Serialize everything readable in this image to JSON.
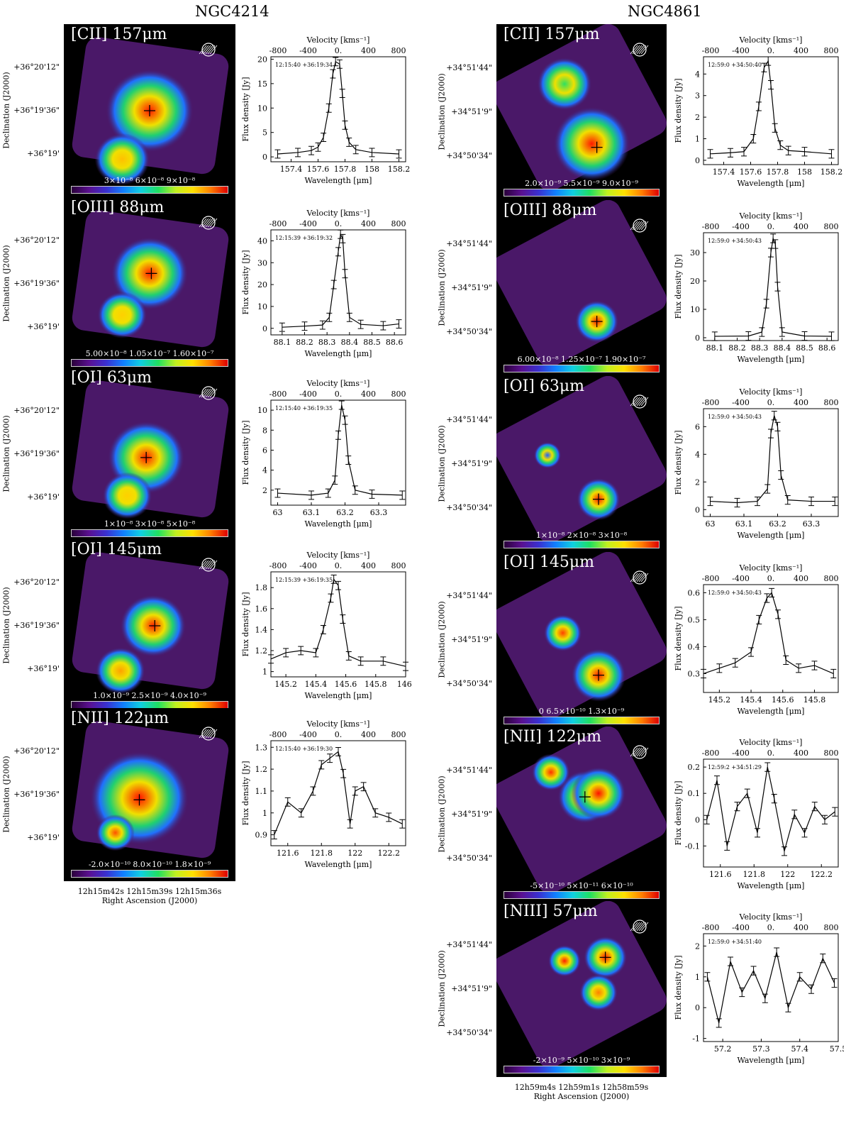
{
  "galaxies": [
    {
      "name": "NGC4214",
      "dec_axis_label": "Declination (J2000)",
      "dec_ticks": [
        "+36°20'12\"",
        "+36°19'36\"",
        "+36°19'"
      ],
      "ra_label": "Right Ascension (J2000)",
      "ra_ticks": [
        "12h15m42s",
        "12h15m39s",
        "12h15m36s"
      ],
      "panels": [
        {
          "line": "[CII] 157μm",
          "cbar_ticks": [
            "3×10⁻⁸",
            "6×10⁻⁸",
            "9×10⁻⁸"
          ]
        },
        {
          "line": "[OIII] 88μm",
          "cbar_ticks": [
            "5.00×10⁻⁸",
            "1.05×10⁻⁷",
            "1.60×10⁻⁷"
          ]
        },
        {
          "line": "[OI] 63μm",
          "cbar_ticks": [
            "1×10⁻⁸",
            "3×10⁻⁸",
            "5×10⁻⁸"
          ]
        },
        {
          "line": "[OI] 145μm",
          "cbar_ticks": [
            "1.0×10⁻⁹",
            "2.5×10⁻⁹",
            "4.0×10⁻⁹"
          ]
        },
        {
          "line": "[NII] 122μm",
          "cbar_ticks": [
            "-2.0×10⁻¹⁰",
            "8.0×10⁻¹⁰",
            "1.8×10⁻⁹"
          ]
        }
      ]
    },
    {
      "name": "NGC4861",
      "dec_axis_label": "Declination (J2000)",
      "dec_ticks": [
        "+34°51'44\"",
        "+34°51'9\"",
        "+34°50'34\""
      ],
      "ra_label": "Right Ascension (J2000)",
      "ra_ticks": [
        "12h59m4s",
        "12h59m1s",
        "12h58m59s"
      ],
      "panels": [
        {
          "line": "[CII] 157μm",
          "cbar_ticks": [
            "2.0×10⁻⁹",
            "5.5×10⁻⁹",
            "9.0×10⁻⁹"
          ]
        },
        {
          "line": "[OIII] 88μm",
          "cbar_ticks": [
            "6.00×10⁻⁸",
            "1.25×10⁻⁷",
            "1.90×10⁻⁷"
          ]
        },
        {
          "line": "[OI] 63μm",
          "cbar_ticks": [
            "1×10⁻⁸",
            "2×10⁻⁸",
            "3×10⁻⁸"
          ]
        },
        {
          "line": "[OI] 145μm",
          "cbar_ticks": [
            "0",
            "6.5×10⁻¹⁰",
            "1.3×10⁻⁹"
          ]
        },
        {
          "line": "[NII] 122μm",
          "cbar_ticks": [
            "-5×10⁻¹⁰",
            "5×10⁻¹¹",
            "6×10⁻¹⁰"
          ]
        },
        {
          "line": "[NIII] 57μm",
          "cbar_ticks": [
            "-2×10⁻⁹",
            "5×10⁻¹⁰",
            "3×10⁻⁹"
          ]
        }
      ]
    }
  ],
  "chart_data": [
    {
      "type": "line",
      "galaxy": "NGC4214",
      "panel": "[CII] 157μm",
      "position": "12:15:40 +36:19:34",
      "xlabel": "Wavelength [μm]",
      "ylabel": "Flux density [Jy]",
      "top_xlabel": "Velocity [kms⁻¹]",
      "xlim": [
        157.25,
        158.25
      ],
      "ylim": [
        -1,
        20.5
      ],
      "xticks": [
        157.4,
        157.6,
        157.8,
        158.0,
        158.2
      ],
      "yticks": [
        0,
        5,
        10,
        15,
        20
      ],
      "top_ticks": [
        "-800",
        "-400",
        "0.",
        "400",
        "800"
      ],
      "x": [
        157.3,
        157.45,
        157.55,
        157.6,
        157.64,
        157.68,
        157.71,
        157.73,
        157.76,
        157.78,
        157.8,
        157.83,
        157.88,
        158.0,
        158.2
      ],
      "y": [
        0.6,
        0.9,
        1.3,
        2.0,
        4.0,
        10.0,
        17.0,
        19.5,
        19.0,
        13.0,
        6.5,
        3.0,
        1.5,
        0.9,
        0.6
      ]
    },
    {
      "type": "line",
      "galaxy": "NGC4214",
      "panel": "[OIII] 88μm",
      "position": "12:15:39 +36:19:32",
      "xlabel": "Wavelength [μm]",
      "ylabel": "Flux density [Jy]",
      "top_xlabel": "Velocity [kms⁻¹]",
      "xlim": [
        88.05,
        88.65
      ],
      "ylim": [
        -3,
        45
      ],
      "xticks": [
        88.1,
        88.2,
        88.3,
        88.4,
        88.5,
        88.6
      ],
      "yticks": [
        0,
        10,
        20,
        30,
        40
      ],
      "top_ticks": [
        "-800",
        "-400",
        "0.",
        "400",
        "800"
      ],
      "x": [
        88.1,
        88.2,
        88.28,
        88.31,
        88.33,
        88.35,
        88.36,
        88.37,
        88.38,
        88.4,
        88.45,
        88.55,
        88.62
      ],
      "y": [
        0.5,
        1.0,
        1.5,
        5.0,
        20.0,
        35.0,
        43.0,
        41.0,
        25.0,
        5.0,
        1.8,
        1.2,
        2.0
      ]
    },
    {
      "type": "line",
      "galaxy": "NGC4214",
      "panel": "[OI] 63μm",
      "position": "12:15:40 +36:19:35",
      "xlabel": "Wavelength [μm]",
      "ylabel": "Flux density [Jy]",
      "top_xlabel": "Velocity [kms⁻¹]",
      "xlim": [
        62.98,
        63.38
      ],
      "ylim": [
        0.5,
        11
      ],
      "xticks": [
        63.0,
        63.1,
        63.2,
        63.3
      ],
      "yticks": [
        2,
        4,
        6,
        8,
        10
      ],
      "top_ticks": [
        "-800",
        "-400",
        "0.",
        "400",
        "800"
      ],
      "x": [
        63.0,
        63.1,
        63.15,
        63.17,
        63.18,
        63.19,
        63.2,
        63.21,
        63.23,
        63.28,
        63.37
      ],
      "y": [
        1.7,
        1.5,
        1.7,
        3.0,
        7.5,
        10.5,
        9.0,
        5.0,
        2.0,
        1.6,
        1.5
      ]
    },
    {
      "type": "line",
      "galaxy": "NGC4214",
      "panel": "[OI] 145μm",
      "position": "12:15:39 +36:19:35",
      "xlabel": "Wavelength [μm]",
      "ylabel": "Flux density [Jy]",
      "top_xlabel": "Velocity [kms⁻¹]",
      "xlim": [
        145.1,
        146.0
      ],
      "ylim": [
        0.95,
        1.95
      ],
      "xticks": [
        145.2,
        145.4,
        145.6,
        145.8,
        146.0
      ],
      "xtick_labels": [
        "145.2",
        "145.4",
        "145.6",
        "145.8",
        "146."
      ],
      "yticks": [
        1.0,
        1.2,
        1.4,
        1.6,
        1.8
      ],
      "top_ticks": [
        "-800",
        "-400",
        "0.",
        "400",
        "800"
      ],
      "x": [
        145.1,
        145.2,
        145.3,
        145.4,
        145.45,
        145.5,
        145.52,
        145.55,
        145.58,
        145.62,
        145.7,
        145.85,
        146.0
      ],
      "y": [
        1.12,
        1.18,
        1.2,
        1.18,
        1.4,
        1.7,
        1.88,
        1.82,
        1.5,
        1.15,
        1.1,
        1.1,
        1.05
      ]
    },
    {
      "type": "line",
      "galaxy": "NGC4214",
      "panel": "[NII] 122μm",
      "position": "12:15:40 +36:19:30",
      "xlabel": "Wavelength [μm]",
      "ylabel": "Flux density [Jy]",
      "top_xlabel": "Velocity [kms⁻¹]",
      "xlim": [
        121.5,
        122.3
      ],
      "ylim": [
        0.85,
        1.33
      ],
      "xticks": [
        121.6,
        121.8,
        122.0,
        122.2
      ],
      "yticks": [
        0.9,
        1.0,
        1.1,
        1.2,
        1.3
      ],
      "top_ticks": [
        "-800",
        "-400",
        "0.",
        "400",
        "800"
      ],
      "x": [
        121.52,
        121.6,
        121.68,
        121.75,
        121.8,
        121.85,
        121.9,
        121.93,
        121.97,
        122.0,
        122.05,
        122.12,
        122.2,
        122.28
      ],
      "y": [
        0.9,
        1.05,
        1.0,
        1.1,
        1.22,
        1.25,
        1.28,
        1.18,
        0.95,
        1.1,
        1.12,
        1.0,
        0.98,
        0.95
      ]
    },
    {
      "type": "line",
      "galaxy": "NGC4861",
      "panel": "[CII] 157μm",
      "position": "12:59:0 +34:50:40",
      "xlabel": "Wavelength [μm]",
      "ylabel": "Flux density [Jy]",
      "top_xlabel": "Velocity [kms⁻¹]",
      "xlim": [
        157.25,
        158.25
      ],
      "ylim": [
        -0.2,
        4.8
      ],
      "xticks": [
        157.4,
        157.6,
        157.8,
        158.0,
        158.2
      ],
      "yticks": [
        0,
        1,
        2,
        3,
        4
      ],
      "top_ticks": [
        "-800",
        "-400",
        "0.",
        "400",
        "800"
      ],
      "x": [
        157.3,
        157.45,
        157.55,
        157.62,
        157.66,
        157.7,
        157.73,
        157.75,
        157.78,
        157.82,
        157.88,
        158.0,
        158.2
      ],
      "y": [
        0.3,
        0.35,
        0.4,
        1.0,
        2.5,
        4.3,
        4.6,
        3.5,
        1.5,
        0.7,
        0.45,
        0.4,
        0.3
      ]
    },
    {
      "type": "line",
      "galaxy": "NGC4861",
      "panel": "[OIII] 88μm",
      "position": "12:59:0 +34:50:43",
      "xlabel": "Wavelength [μm]",
      "ylabel": "Flux density [Jy]",
      "top_xlabel": "Velocity [kms⁻¹]",
      "xlim": [
        88.05,
        88.65
      ],
      "ylim": [
        -1,
        37
      ],
      "xticks": [
        88.1,
        88.2,
        88.3,
        88.4,
        88.5,
        88.6
      ],
      "yticks": [
        0,
        10,
        20,
        30
      ],
      "top_ticks": [
        "-800",
        "-400",
        "0.",
        "400",
        "800"
      ],
      "x": [
        88.1,
        88.25,
        88.31,
        88.33,
        88.35,
        88.36,
        88.37,
        88.38,
        88.4,
        88.5,
        88.62
      ],
      "y": [
        0.5,
        0.6,
        2.0,
        12.0,
        30.0,
        35.0,
        33.0,
        18.0,
        2.0,
        0.6,
        0.5
      ]
    },
    {
      "type": "line",
      "galaxy": "NGC4861",
      "panel": "[OI] 63μm",
      "position": "12:59:0 +34:50:43",
      "xlabel": "Wavelength [μm]",
      "ylabel": "Flux density [Jy]",
      "top_xlabel": "Velocity [kms⁻¹]",
      "xlim": [
        62.98,
        63.38
      ],
      "ylim": [
        -0.5,
        7.3
      ],
      "xticks": [
        63.0,
        63.1,
        63.2,
        63.3
      ],
      "yticks": [
        0,
        2,
        4,
        6
      ],
      "top_ticks": [
        "-800",
        "-400",
        "0.",
        "400",
        "800"
      ],
      "x": [
        63.0,
        63.08,
        63.14,
        63.17,
        63.18,
        63.19,
        63.2,
        63.21,
        63.23,
        63.3,
        63.37
      ],
      "y": [
        0.6,
        0.5,
        0.6,
        1.5,
        5.5,
        6.8,
        6.0,
        2.5,
        0.7,
        0.6,
        0.6
      ]
    },
    {
      "type": "line",
      "galaxy": "NGC4861",
      "panel": "[OI] 145μm",
      "position": "12:59:0 +34:50:43",
      "xlabel": "Wavelength [μm]",
      "ylabel": "Flux density [Jy]",
      "top_xlabel": "Velocity [kms⁻¹]",
      "xlim": [
        145.1,
        145.95
      ],
      "ylim": [
        0.23,
        0.63
      ],
      "xticks": [
        145.2,
        145.4,
        145.6,
        145.8
      ],
      "yticks": [
        0.3,
        0.4,
        0.5,
        0.6
      ],
      "top_ticks": [
        "-800",
        "-400",
        "0.",
        "400",
        "800"
      ],
      "x": [
        145.1,
        145.2,
        145.3,
        145.4,
        145.45,
        145.5,
        145.53,
        145.57,
        145.62,
        145.7,
        145.8,
        145.92
      ],
      "y": [
        0.3,
        0.32,
        0.34,
        0.38,
        0.5,
        0.58,
        0.6,
        0.52,
        0.35,
        0.32,
        0.33,
        0.3
      ]
    },
    {
      "type": "line",
      "galaxy": "NGC4861",
      "panel": "[NII] 122μm",
      "position": "12:59:2 +34:51:29",
      "xlabel": "Wavelength [μm]",
      "ylabel": "Flux density [Jy]",
      "top_xlabel": "Velocity [kms⁻¹]",
      "xlim": [
        121.5,
        122.3
      ],
      "ylim": [
        -0.18,
        0.23
      ],
      "xticks": [
        121.6,
        121.8,
        122.0,
        122.2
      ],
      "yticks": [
        -0.1,
        0.0,
        0.1,
        0.2
      ],
      "top_ticks": [
        "-800",
        "-400",
        "0.",
        "400",
        "800"
      ],
      "x": [
        121.52,
        121.58,
        121.64,
        121.7,
        121.76,
        121.82,
        121.88,
        121.92,
        121.98,
        122.04,
        122.1,
        122.16,
        122.22,
        122.28
      ],
      "y": [
        0.0,
        0.15,
        -0.1,
        0.05,
        0.1,
        -0.05,
        0.2,
        0.08,
        -0.12,
        0.02,
        -0.05,
        0.05,
        0.0,
        0.03
      ]
    },
    {
      "type": "line",
      "galaxy": "NGC4861",
      "panel": "[NIII] 57μm",
      "position": "12:59:0 +34:51:40",
      "xlabel": "Wavelength [μm]",
      "ylabel": "Flux density [Jy]",
      "top_xlabel": "Velocity [kms⁻¹]",
      "xlim": [
        57.15,
        57.5
      ],
      "ylim": [
        -1.1,
        2.4
      ],
      "xticks": [
        57.2,
        57.3,
        57.4,
        57.5
      ],
      "yticks": [
        -1,
        0,
        1,
        2
      ],
      "top_ticks": [
        "-800",
        "-400",
        "0.",
        "400",
        "800"
      ],
      "x": [
        57.16,
        57.19,
        57.22,
        57.25,
        57.28,
        57.31,
        57.34,
        57.37,
        57.4,
        57.43,
        57.46,
        57.49
      ],
      "y": [
        1.0,
        -0.5,
        1.5,
        0.5,
        1.2,
        0.3,
        1.8,
        0.0,
        1.0,
        0.6,
        1.6,
        0.8
      ]
    }
  ]
}
